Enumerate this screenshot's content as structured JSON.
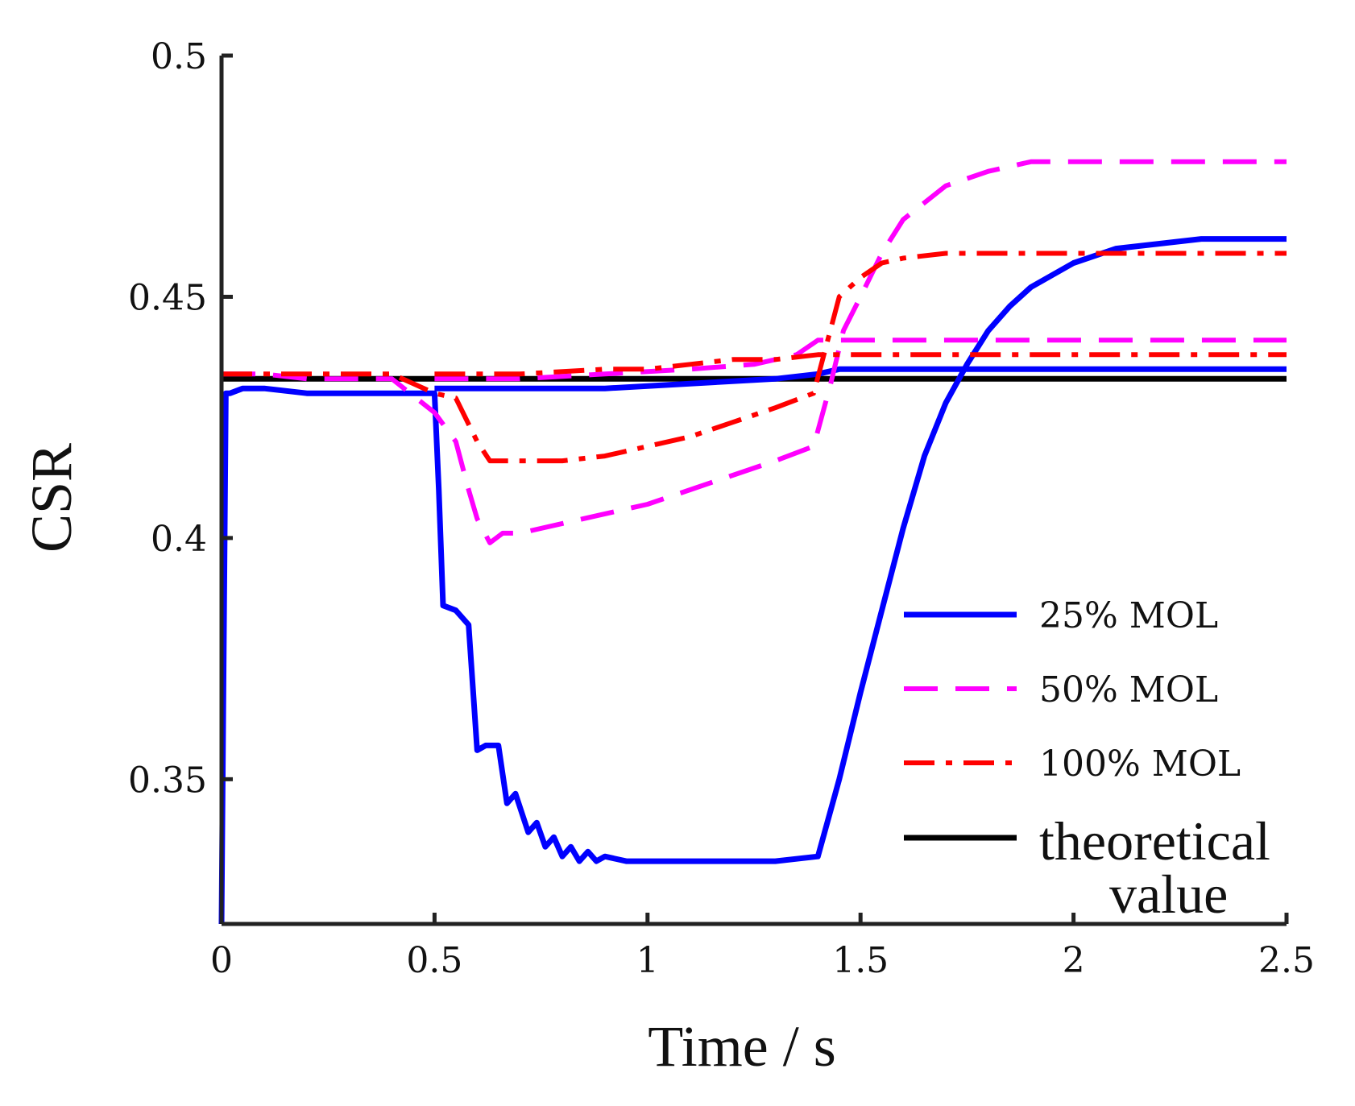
{
  "chart_data": {
    "type": "line",
    "xlabel": "Time / s",
    "ylabel": "CSR",
    "xlim": [
      0,
      2.5
    ],
    "ylim": [
      0.32,
      0.5
    ],
    "xticks": [
      0,
      0.5,
      1,
      1.5,
      2,
      2.5
    ],
    "xtick_labels": [
      "0",
      "0.5",
      "1",
      "1.5",
      "2",
      "2.5"
    ],
    "yticks": [
      0.35,
      0.4,
      0.45,
      0.5
    ],
    "ytick_labels": [
      "0.35",
      "0.4",
      "0.45",
      "0.5"
    ],
    "grid": false,
    "legend_position": "lower-right",
    "series": [
      {
        "name": "25% MOL",
        "color": "#0000ff",
        "style": "solid",
        "values_x": [
          0,
          0.01,
          0.02,
          0.05,
          0.1,
          0.2,
          0.3,
          0.4,
          0.5,
          0.51,
          0.52,
          0.55,
          0.58,
          0.6,
          0.62,
          0.65,
          0.67,
          0.69,
          0.72,
          0.74,
          0.76,
          0.78,
          0.8,
          0.82,
          0.84,
          0.86,
          0.88,
          0.9,
          0.95,
          1.0,
          1.1,
          1.2,
          1.3,
          1.4,
          1.45,
          1.5,
          1.55,
          1.6,
          1.65,
          1.7,
          1.75,
          1.8,
          1.85,
          1.9,
          2.0,
          2.1,
          2.2,
          2.3,
          2.4,
          2.5
        ],
        "values_y": [
          0.32,
          0.43,
          0.43,
          0.431,
          0.431,
          0.43,
          0.43,
          0.43,
          0.43,
          0.41,
          0.386,
          0.385,
          0.382,
          0.356,
          0.357,
          0.357,
          0.345,
          0.347,
          0.339,
          0.341,
          0.336,
          0.338,
          0.334,
          0.336,
          0.333,
          0.335,
          0.333,
          0.334,
          0.333,
          0.333,
          0.333,
          0.333,
          0.333,
          0.334,
          0.35,
          0.368,
          0.385,
          0.402,
          0.417,
          0.428,
          0.436,
          0.443,
          0.448,
          0.452,
          0.457,
          0.46,
          0.461,
          0.462,
          0.462,
          0.462
        ]
      },
      {
        "name": "25% MOL",
        "color": "#0000ff",
        "style": "solid",
        "values_x": [
          0.5,
          0.7,
          0.9,
          1.1,
          1.3,
          1.4,
          1.45,
          1.6,
          2.0,
          2.5
        ],
        "values_y": [
          0.431,
          0.431,
          0.431,
          0.432,
          0.433,
          0.434,
          0.435,
          0.435,
          0.435,
          0.435
        ]
      },
      {
        "name": "50% MOL",
        "color": "#ff00ff",
        "style": "dashed",
        "values_x": [
          0,
          0.1,
          0.2,
          0.3,
          0.4,
          0.5,
          0.55,
          0.58,
          0.6,
          0.63,
          0.66,
          0.7,
          0.8,
          0.9,
          1.0,
          1.1,
          1.2,
          1.3,
          1.39,
          1.43,
          1.46,
          1.5,
          1.55,
          1.6,
          1.7,
          1.8,
          1.9,
          2.0,
          2.2,
          2.5
        ],
        "values_y": [
          0.434,
          0.434,
          0.433,
          0.433,
          0.433,
          0.426,
          0.42,
          0.41,
          0.404,
          0.399,
          0.401,
          0.401,
          0.403,
          0.405,
          0.407,
          0.41,
          0.413,
          0.416,
          0.419,
          0.432,
          0.443,
          0.45,
          0.459,
          0.466,
          0.473,
          0.476,
          0.478,
          0.478,
          0.478,
          0.478
        ]
      },
      {
        "name": "50% MOL",
        "color": "#ff00ff",
        "style": "dashed",
        "values_x": [
          0.5,
          0.7,
          0.9,
          1.1,
          1.25,
          1.35,
          1.4,
          1.5,
          2.0,
          2.5
        ],
        "values_y": [
          0.433,
          0.433,
          0.434,
          0.435,
          0.436,
          0.438,
          0.441,
          0.441,
          0.441,
          0.441
        ]
      },
      {
        "name": "100% MOL",
        "color": "#ff0000",
        "style": "dashdot",
        "values_x": [
          0,
          0.1,
          0.2,
          0.3,
          0.4,
          0.5,
          0.55,
          0.6,
          0.63,
          0.66,
          0.7,
          0.8,
          0.9,
          1.0,
          1.1,
          1.2,
          1.3,
          1.39,
          1.42,
          1.45,
          1.5,
          1.55,
          1.6,
          1.7,
          1.8,
          1.9,
          2.0,
          2.2,
          2.5
        ],
        "values_y": [
          0.434,
          0.434,
          0.434,
          0.434,
          0.434,
          0.43,
          0.429,
          0.42,
          0.416,
          0.416,
          0.416,
          0.416,
          0.417,
          0.419,
          0.421,
          0.424,
          0.427,
          0.43,
          0.44,
          0.45,
          0.454,
          0.457,
          0.458,
          0.459,
          0.459,
          0.459,
          0.459,
          0.459,
          0.459
        ]
      },
      {
        "name": "100% MOL",
        "color": "#ff0000",
        "style": "dashdot",
        "values_x": [
          0.5,
          0.7,
          0.9,
          1.0,
          1.1,
          1.2,
          1.3,
          1.4,
          1.5,
          2.0,
          2.5
        ],
        "values_y": [
          0.434,
          0.434,
          0.435,
          0.435,
          0.436,
          0.437,
          0.437,
          0.438,
          0.438,
          0.438,
          0.438
        ]
      },
      {
        "name": "theoretical value",
        "color": "#000000",
        "style": "solid",
        "values_x": [
          0,
          2.5
        ],
        "values_y": [
          0.433,
          0.433
        ]
      }
    ],
    "legend": [
      {
        "label": "25% MOL",
        "color": "#0000ff",
        "style": "solid"
      },
      {
        "label": "50% MOL",
        "color": "#ff00ff",
        "style": "dashed"
      },
      {
        "label": "100% MOL",
        "color": "#ff0000",
        "style": "dashdot"
      },
      {
        "label_line1": "theoretical",
        "label_line2": "value",
        "color": "#000000",
        "style": "solid"
      }
    ]
  }
}
